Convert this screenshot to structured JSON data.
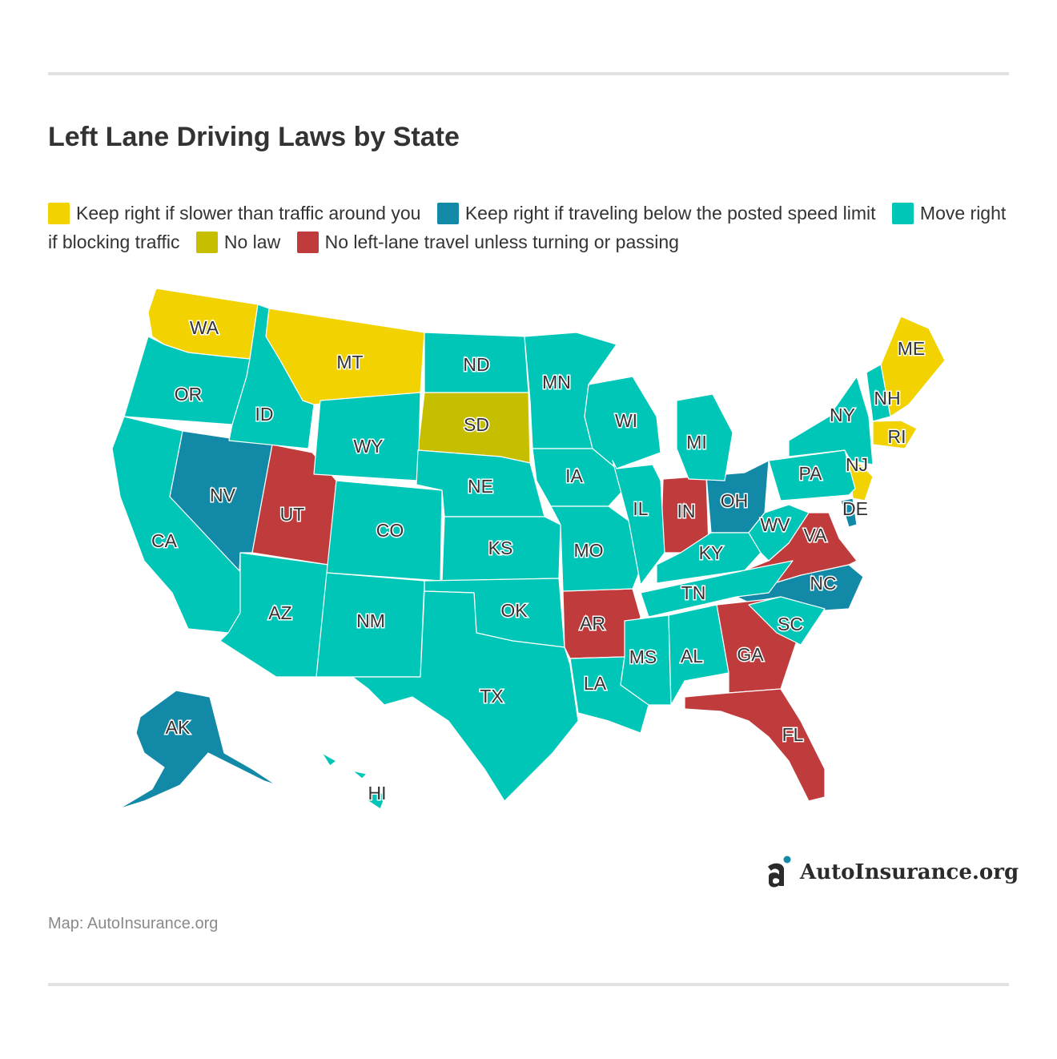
{
  "title": "Left Lane Driving Laws by State",
  "source": "Map: AutoInsurance.org",
  "brand": "AutoInsurance.org",
  "colors": {
    "slower": "#f2d200",
    "below_limit": "#1289a7",
    "blocking": "#00c6b7",
    "no_law": "#c5bf00",
    "no_left": "#c03c3c"
  },
  "legend": [
    {
      "key": "slower",
      "label": "Keep right if slower than traffic around you"
    },
    {
      "key": "below_limit",
      "label": "Keep right if traveling below the posted speed limit"
    },
    {
      "key": "blocking",
      "label": "Move right if blocking traffic"
    },
    {
      "key": "no_law",
      "label": "No law"
    },
    {
      "key": "no_left",
      "label": "No left-lane travel unless turning or passing"
    }
  ],
  "states": [
    {
      "abbr": "WA",
      "category": "slower"
    },
    {
      "abbr": "MT",
      "category": "slower"
    },
    {
      "abbr": "ME",
      "category": "slower"
    },
    {
      "abbr": "RI",
      "category": "slower"
    },
    {
      "abbr": "NJ",
      "category": "slower"
    },
    {
      "abbr": "NV",
      "category": "below_limit"
    },
    {
      "abbr": "OH",
      "category": "below_limit"
    },
    {
      "abbr": "NC",
      "category": "below_limit"
    },
    {
      "abbr": "AK",
      "category": "below_limit"
    },
    {
      "abbr": "DE",
      "category": "below_limit"
    },
    {
      "abbr": "SD",
      "category": "no_law"
    },
    {
      "abbr": "UT",
      "category": "no_left"
    },
    {
      "abbr": "IN",
      "category": "no_left"
    },
    {
      "abbr": "AR",
      "category": "no_left"
    },
    {
      "abbr": "VA",
      "category": "no_left"
    },
    {
      "abbr": "GA",
      "category": "no_left"
    },
    {
      "abbr": "FL",
      "category": "no_left"
    },
    {
      "abbr": "OR",
      "category": "blocking"
    },
    {
      "abbr": "CA",
      "category": "blocking"
    },
    {
      "abbr": "ID",
      "category": "blocking"
    },
    {
      "abbr": "WY",
      "category": "blocking"
    },
    {
      "abbr": "AZ",
      "category": "blocking"
    },
    {
      "abbr": "CO",
      "category": "blocking"
    },
    {
      "abbr": "NM",
      "category": "blocking"
    },
    {
      "abbr": "ND",
      "category": "blocking"
    },
    {
      "abbr": "NE",
      "category": "blocking"
    },
    {
      "abbr": "KS",
      "category": "blocking"
    },
    {
      "abbr": "OK",
      "category": "blocking"
    },
    {
      "abbr": "TX",
      "category": "blocking"
    },
    {
      "abbr": "MN",
      "category": "blocking"
    },
    {
      "abbr": "IA",
      "category": "blocking"
    },
    {
      "abbr": "MO",
      "category": "blocking"
    },
    {
      "abbr": "LA",
      "category": "blocking"
    },
    {
      "abbr": "WI",
      "category": "blocking"
    },
    {
      "abbr": "IL",
      "category": "blocking"
    },
    {
      "abbr": "MI",
      "category": "blocking"
    },
    {
      "abbr": "KY",
      "category": "blocking"
    },
    {
      "abbr": "TN",
      "category": "blocking"
    },
    {
      "abbr": "MS",
      "category": "blocking"
    },
    {
      "abbr": "AL",
      "category": "blocking"
    },
    {
      "abbr": "SC",
      "category": "blocking"
    },
    {
      "abbr": "WV",
      "category": "blocking"
    },
    {
      "abbr": "PA",
      "category": "blocking"
    },
    {
      "abbr": "NY",
      "category": "blocking"
    },
    {
      "abbr": "NH",
      "category": "blocking"
    },
    {
      "abbr": "HI",
      "category": "blocking"
    }
  ]
}
